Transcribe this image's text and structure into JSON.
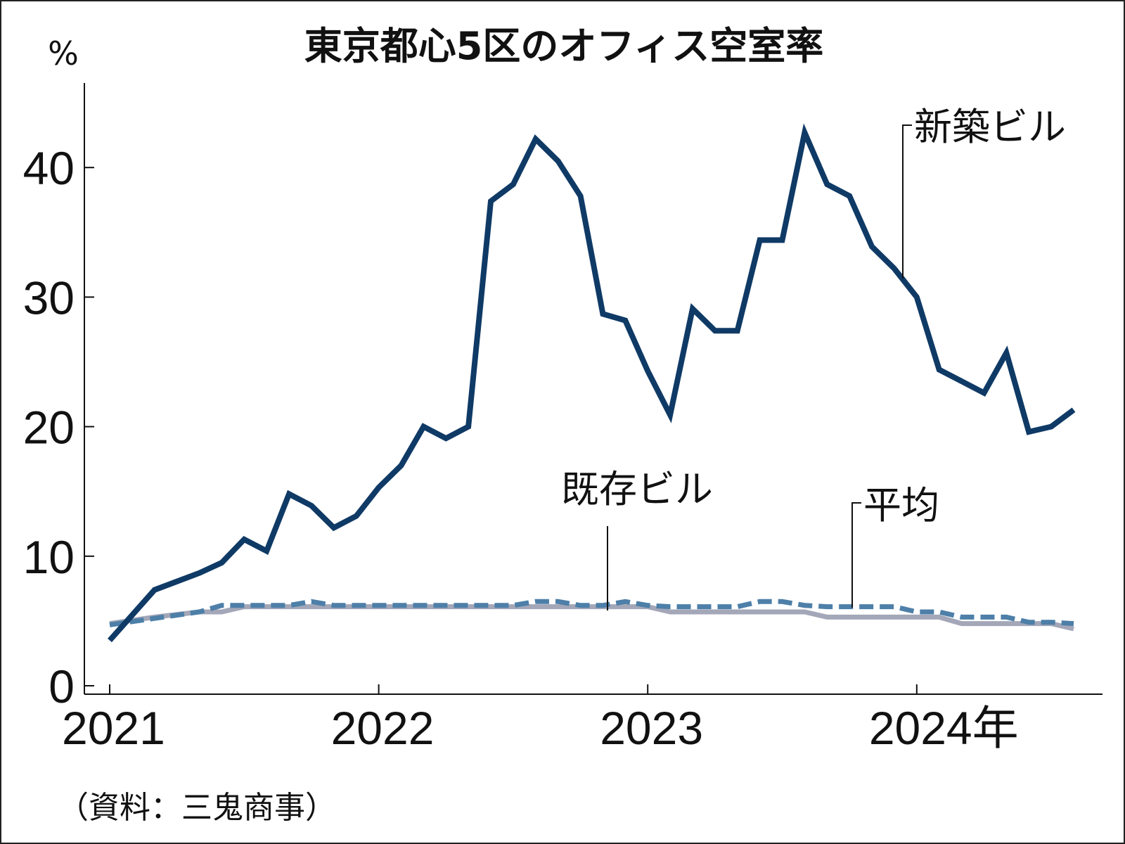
{
  "chart_data": {
    "type": "line",
    "title": "東京都心5区のオフィス空室率",
    "y_unit": "%",
    "ylim": [
      0,
      45
    ],
    "y_ticks": [
      "0",
      "10",
      "20",
      "30",
      "40"
    ],
    "x_ticks": [
      "2021",
      "2022",
      "2023",
      "2024年"
    ],
    "x_range": [
      "2021-01",
      "2024-08"
    ],
    "source": "（資料：三鬼商事）",
    "series": [
      {
        "name": "新築ビル",
        "color": "#0f3a66",
        "style": "solid",
        "x": [
          "2021-01",
          "2021-03",
          "2021-05",
          "2021-06",
          "2021-07",
          "2021-08",
          "2021-09",
          "2021-10",
          "2021-11",
          "2021-12",
          "2022-01",
          "2022-02",
          "2022-03",
          "2022-04",
          "2022-05",
          "2022-06",
          "2022-07",
          "2022-08",
          "2022-09",
          "2022-10",
          "2022-11",
          "2022-12",
          "2023-01",
          "2023-02",
          "2023-03",
          "2023-04",
          "2023-05",
          "2023-06",
          "2023-07",
          "2023-08",
          "2023-09",
          "2023-10",
          "2023-11",
          "2023-12",
          "2024-01",
          "2024-02",
          "2024-03",
          "2024-04",
          "2024-05",
          "2024-06",
          "2024-07",
          "2024-08"
        ],
        "values": [
          3.5,
          7.4,
          8.7,
          9.5,
          11.3,
          10.4,
          14.8,
          13.9,
          12.2,
          13.1,
          15.3,
          17.0,
          20.0,
          19.1,
          20.0,
          37.4,
          38.7,
          42.2,
          40.5,
          37.8,
          28.7,
          28.2,
          24.3,
          20.9,
          29.1,
          27.4,
          27.4,
          34.4,
          34.4,
          42.7,
          38.7,
          37.8,
          33.9,
          32.2,
          30.0,
          24.4,
          23.5,
          22.6,
          25.7,
          19.6,
          20.0,
          21.3
        ]
      },
      {
        "name": "平均",
        "color": "#4d7fa8",
        "style": "dashed",
        "x": [
          "2021-01",
          "2021-03",
          "2021-05",
          "2021-06",
          "2021-07",
          "2021-08",
          "2021-09",
          "2021-10",
          "2021-11",
          "2021-12",
          "2022-01",
          "2022-02",
          "2022-03",
          "2022-04",
          "2022-05",
          "2022-06",
          "2022-07",
          "2022-08",
          "2022-09",
          "2022-10",
          "2022-11",
          "2022-12",
          "2023-01",
          "2023-02",
          "2023-03",
          "2023-04",
          "2023-05",
          "2023-06",
          "2023-07",
          "2023-08",
          "2023-09",
          "2023-10",
          "2023-11",
          "2023-12",
          "2024-01",
          "2024-02",
          "2024-03",
          "2024-04",
          "2024-05",
          "2024-06",
          "2024-07",
          "2024-08"
        ],
        "values": [
          4.7,
          5.2,
          5.7,
          6.2,
          6.2,
          6.2,
          6.2,
          6.5,
          6.2,
          6.2,
          6.2,
          6.2,
          6.2,
          6.2,
          6.2,
          6.2,
          6.2,
          6.5,
          6.5,
          6.2,
          6.2,
          6.5,
          6.2,
          6.1,
          6.1,
          6.1,
          6.1,
          6.5,
          6.5,
          6.2,
          6.1,
          6.1,
          6.1,
          6.1,
          5.7,
          5.7,
          5.3,
          5.3,
          5.3,
          4.9,
          4.9,
          4.8
        ]
      },
      {
        "name": "既存ビル",
        "color": "#a3a7b8",
        "style": "solid",
        "x": [
          "2021-01",
          "2021-03",
          "2021-05",
          "2021-06",
          "2021-07",
          "2021-08",
          "2021-09",
          "2021-10",
          "2021-11",
          "2021-12",
          "2022-01",
          "2022-02",
          "2022-03",
          "2022-04",
          "2022-05",
          "2022-06",
          "2022-07",
          "2022-08",
          "2022-09",
          "2022-10",
          "2022-11",
          "2022-12",
          "2023-01",
          "2023-02",
          "2023-03",
          "2023-04",
          "2023-05",
          "2023-06",
          "2023-07",
          "2023-08",
          "2023-09",
          "2023-10",
          "2023-11",
          "2023-12",
          "2024-01",
          "2024-02",
          "2024-03",
          "2024-04",
          "2024-05",
          "2024-06",
          "2024-07",
          "2024-08"
        ],
        "values": [
          4.8,
          5.3,
          5.7,
          5.7,
          6.1,
          6.1,
          6.1,
          6.1,
          6.1,
          6.1,
          6.1,
          6.1,
          6.1,
          6.1,
          6.1,
          6.1,
          6.1,
          6.1,
          6.1,
          6.1,
          6.1,
          6.1,
          6.1,
          5.7,
          5.7,
          5.7,
          5.7,
          5.7,
          5.7,
          5.7,
          5.3,
          5.3,
          5.3,
          5.3,
          5.3,
          5.3,
          4.8,
          4.8,
          4.8,
          4.8,
          4.8,
          4.4
        ]
      }
    ]
  }
}
